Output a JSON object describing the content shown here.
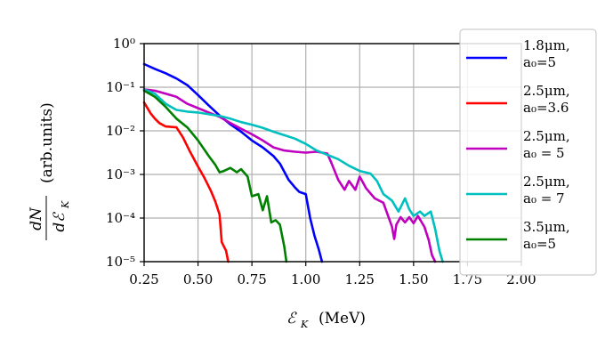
{
  "chart_data": {
    "type": "line",
    "title": "",
    "xlabel": "ℰ_K (MeV)",
    "ylabel": "dN/dℰ_K (arb.units)",
    "xlim": [
      0.25,
      2.0
    ],
    "ylim_log10": [
      -5,
      0
    ],
    "yscale": "log",
    "grid": true,
    "legend_position": "right",
    "x_ticks": [
      "0.25",
      "0.50",
      "0.75",
      "1.00",
      "1.25",
      "1.50",
      "1.75",
      "2.00"
    ],
    "y_ticks": [
      "10⁰",
      "10⁻¹",
      "10⁻²",
      "10⁻³",
      "10⁻⁴",
      "10⁻⁵"
    ],
    "series": [
      {
        "name": "1.8μm, a0=5",
        "color": "#0000ff",
        "x": [
          0.25,
          0.3,
          0.35,
          0.4,
          0.45,
          0.5,
          0.55,
          0.6,
          0.65,
          0.7,
          0.75,
          0.8,
          0.85,
          0.88,
          0.92,
          0.95,
          0.97,
          1.0,
          1.02,
          1.04,
          1.06,
          1.075
        ],
        "y": [
          -0.47,
          -0.58,
          -0.68,
          -0.8,
          -0.95,
          -1.18,
          -1.42,
          -1.65,
          -1.85,
          -2.02,
          -2.22,
          -2.38,
          -2.58,
          -2.75,
          -3.12,
          -3.3,
          -3.4,
          -3.45,
          -4.0,
          -4.4,
          -4.72,
          -5.0
        ]
      },
      {
        "name": "2.5μm, a0=3.6",
        "color": "#ff0000",
        "x": [
          0.25,
          0.28,
          0.3,
          0.32,
          0.35,
          0.4,
          0.43,
          0.46,
          0.5,
          0.53,
          0.56,
          0.58,
          0.6,
          0.61,
          0.63,
          0.64
        ],
        "y": [
          -1.35,
          -1.6,
          -1.72,
          -1.82,
          -1.9,
          -1.92,
          -2.15,
          -2.45,
          -2.82,
          -3.08,
          -3.38,
          -3.62,
          -3.92,
          -4.55,
          -4.75,
          -5.0
        ]
      },
      {
        "name": "2.5μm, a0 = 5",
        "color": "#bf00bf",
        "x": [
          0.25,
          0.3,
          0.35,
          0.4,
          0.45,
          0.5,
          0.55,
          0.6,
          0.65,
          0.7,
          0.75,
          0.8,
          0.85,
          0.9,
          0.95,
          1.0,
          1.05,
          1.1,
          1.12,
          1.15,
          1.18,
          1.2,
          1.23,
          1.25,
          1.28,
          1.32,
          1.36,
          1.4,
          1.41,
          1.42,
          1.44,
          1.46,
          1.48,
          1.5,
          1.52,
          1.55,
          1.57,
          1.585,
          1.6
        ],
        "y": [
          -1.05,
          -1.08,
          -1.15,
          -1.22,
          -1.38,
          -1.48,
          -1.58,
          -1.68,
          -1.82,
          -1.95,
          -2.08,
          -2.22,
          -2.38,
          -2.45,
          -2.48,
          -2.5,
          -2.48,
          -2.52,
          -2.75,
          -3.12,
          -3.35,
          -3.15,
          -3.35,
          -3.05,
          -3.32,
          -3.55,
          -3.65,
          -4.2,
          -4.48,
          -4.15,
          -3.98,
          -4.1,
          -3.98,
          -4.12,
          -3.95,
          -4.2,
          -4.5,
          -4.85,
          -5.0
        ]
      },
      {
        "name": "2.5μm, a0 = 7",
        "color": "#00bfbf",
        "x": [
          0.25,
          0.3,
          0.35,
          0.4,
          0.45,
          0.5,
          0.55,
          0.6,
          0.65,
          0.7,
          0.75,
          0.8,
          0.85,
          0.9,
          0.95,
          1.0,
          1.05,
          1.1,
          1.15,
          1.2,
          1.25,
          1.3,
          1.33,
          1.36,
          1.4,
          1.43,
          1.46,
          1.48,
          1.5,
          1.53,
          1.55,
          1.58,
          1.6,
          1.62,
          1.635
        ],
        "y": [
          -1.05,
          -1.15,
          -1.38,
          -1.52,
          -1.56,
          -1.58,
          -1.62,
          -1.66,
          -1.72,
          -1.8,
          -1.86,
          -1.93,
          -2.02,
          -2.1,
          -2.18,
          -2.3,
          -2.45,
          -2.55,
          -2.65,
          -2.8,
          -2.92,
          -2.98,
          -3.15,
          -3.45,
          -3.6,
          -3.85,
          -3.55,
          -3.8,
          -3.95,
          -3.85,
          -3.95,
          -3.85,
          -4.25,
          -4.75,
          -5.0
        ]
      },
      {
        "name": "3.5μm, a0=5",
        "color": "#008000",
        "x": [
          0.25,
          0.3,
          0.35,
          0.4,
          0.45,
          0.5,
          0.55,
          0.58,
          0.6,
          0.62,
          0.65,
          0.68,
          0.7,
          0.73,
          0.75,
          0.78,
          0.8,
          0.82,
          0.84,
          0.86,
          0.88,
          0.9,
          0.91
        ],
        "y": [
          -1.08,
          -1.22,
          -1.45,
          -1.72,
          -1.92,
          -2.22,
          -2.58,
          -2.78,
          -2.95,
          -2.92,
          -2.85,
          -2.95,
          -2.88,
          -3.05,
          -3.5,
          -3.45,
          -3.82,
          -3.5,
          -4.1,
          -4.05,
          -4.15,
          -4.65,
          -5.0
        ]
      }
    ]
  },
  "labels": {
    "ylabel_num": "dN",
    "ylabel_den": "dℰ",
    "ylabel_sub": "K",
    "ylabel_unit": "(arb.units)",
    "xlabel_main": "ℰ",
    "xlabel_sub": "K",
    "xlabel_unit": "(MeV)"
  },
  "legend": [
    {
      "line1": "1.8μm,",
      "line2": "a₀=5"
    },
    {
      "line1": "2.5μm,",
      "line2": "a₀=3.6"
    },
    {
      "line1": "2.5μm,",
      "line2": "a₀ = 5"
    },
    {
      "line1": "2.5μm,",
      "line2": "a₀ = 7"
    },
    {
      "line1": "3.5μm,",
      "line2": "a₀=5"
    }
  ]
}
